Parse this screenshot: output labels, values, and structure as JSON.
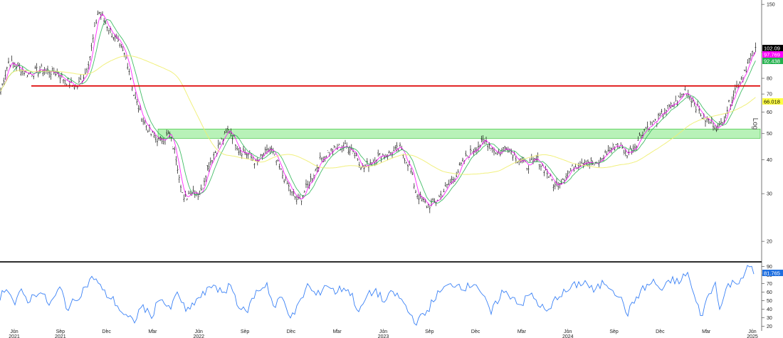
{
  "chart_data": [
    {
      "type": "line",
      "panel": "price",
      "title": "",
      "scale": "log",
      "axis_label": "Log",
      "ylim": [
        17,
        152
      ],
      "y_ticks": [
        20,
        30,
        40,
        50,
        60,
        70,
        80,
        100,
        150
      ],
      "x_tick_labels": [
        {
          "label": "Jun",
          "year": "2021"
        },
        {
          "label": "Sep",
          "year": "2021"
        },
        {
          "label": "Dec",
          "year": ""
        },
        {
          "label": "Mar",
          "year": ""
        },
        {
          "label": "Jun",
          "year": "2022"
        },
        {
          "label": "Sep",
          "year": ""
        },
        {
          "label": "Dec",
          "year": ""
        },
        {
          "label": "Mar",
          "year": ""
        },
        {
          "label": "Jun",
          "year": "2023"
        },
        {
          "label": "Sep",
          "year": ""
        },
        {
          "label": "Dec",
          "year": ""
        },
        {
          "label": "Mar",
          "year": ""
        },
        {
          "label": "Jun",
          "year": "2024"
        },
        {
          "label": "Sep",
          "year": ""
        },
        {
          "label": "Dec",
          "year": ""
        },
        {
          "label": "Mar",
          "year": ""
        },
        {
          "label": "Jun",
          "year": "2025"
        }
      ],
      "price_path": [
        [
          0,
          70
        ],
        [
          12,
          92
        ],
        [
          25,
          88
        ],
        [
          40,
          83
        ],
        [
          58,
          86
        ],
        [
          78,
          84
        ],
        [
          100,
          76
        ],
        [
          108,
          74
        ],
        [
          120,
          84
        ],
        [
          128,
          100
        ],
        [
          138,
          142
        ],
        [
          150,
          126
        ],
        [
          165,
          108
        ],
        [
          178,
          94
        ],
        [
          188,
          70
        ],
        [
          198,
          58
        ],
        [
          212,
          50
        ],
        [
          225,
          47
        ],
        [
          238,
          50
        ],
        [
          248,
          40
        ],
        [
          258,
          28
        ],
        [
          268,
          31
        ],
        [
          282,
          30
        ],
        [
          292,
          38
        ],
        [
          305,
          44
        ],
        [
          322,
          52
        ],
        [
          335,
          44
        ],
        [
          348,
          42
        ],
        [
          360,
          39
        ],
        [
          380,
          44
        ],
        [
          395,
          36
        ],
        [
          410,
          30
        ],
        [
          420,
          28
        ],
        [
          435,
          33
        ],
        [
          450,
          40
        ],
        [
          465,
          43
        ],
        [
          480,
          45
        ],
        [
          495,
          44
        ],
        [
          510,
          37
        ],
        [
          528,
          41
        ],
        [
          545,
          42
        ],
        [
          562,
          44
        ],
        [
          575,
          38
        ],
        [
          585,
          30
        ],
        [
          600,
          27
        ],
        [
          612,
          28
        ],
        [
          625,
          31
        ],
        [
          640,
          35
        ],
        [
          655,
          41
        ],
        [
          670,
          45
        ],
        [
          682,
          47
        ],
        [
          700,
          42
        ],
        [
          712,
          45
        ],
        [
          725,
          41
        ],
        [
          740,
          38
        ],
        [
          755,
          40
        ],
        [
          768,
          36
        ],
        [
          780,
          32
        ],
        [
          795,
          35
        ],
        [
          808,
          38
        ],
        [
          822,
          40
        ],
        [
          838,
          38
        ],
        [
          850,
          42
        ],
        [
          868,
          46
        ],
        [
          880,
          42
        ],
        [
          892,
          45
        ],
        [
          905,
          52
        ],
        [
          920,
          55
        ],
        [
          935,
          61
        ],
        [
          950,
          65
        ],
        [
          963,
          72
        ],
        [
          975,
          65
        ],
        [
          988,
          57
        ],
        [
          1000,
          55
        ],
        [
          1010,
          52
        ],
        [
          1020,
          60
        ],
        [
          1032,
          72
        ],
        [
          1045,
          84
        ],
        [
          1055,
          96
        ],
        [
          1062,
          102
        ]
      ],
      "indicator_lines": [
        {
          "color": "#ff00ff",
          "label": "97.769",
          "label_bg": "#ff00ff",
          "smooth": 4
        },
        {
          "color": "#22b14c",
          "label": "92.438",
          "label_bg": "#22b14c",
          "smooth": 9
        },
        {
          "color": "#f0ee70",
          "label": "66.018",
          "label_bg": "#ffff44",
          "smooth": 55
        }
      ],
      "last_price_label": "102.09",
      "last_price": 102.09,
      "horizontal_line": {
        "value": 75,
        "color": "#dd0000"
      },
      "support_band": {
        "from": 48,
        "to": 52,
        "color": "#7de87d"
      }
    },
    {
      "type": "line",
      "panel": "oscillator",
      "ylim": [
        17,
        92
      ],
      "y_ticks": [
        20,
        30,
        40,
        50,
        60,
        70,
        80,
        90
      ],
      "series_color": "#3b82f6",
      "last_value_label": "81.765",
      "values_path": [
        [
          0,
          55
        ],
        [
          10,
          68
        ],
        [
          20,
          45
        ],
        [
          30,
          60
        ],
        [
          40,
          50
        ],
        [
          55,
          62
        ],
        [
          70,
          45
        ],
        [
          85,
          65
        ],
        [
          95,
          40
        ],
        [
          110,
          55
        ],
        [
          125,
          72
        ],
        [
          133,
          78
        ],
        [
          145,
          60
        ],
        [
          160,
          50
        ],
        [
          175,
          32
        ],
        [
          188,
          25
        ],
        [
          200,
          45
        ],
        [
          212,
          30
        ],
        [
          225,
          55
        ],
        [
          238,
          38
        ],
        [
          250,
          60
        ],
        [
          262,
          35
        ],
        [
          275,
          50
        ],
        [
          290,
          60
        ],
        [
          300,
          70
        ],
        [
          315,
          55
        ],
        [
          322,
          72
        ],
        [
          335,
          45
        ],
        [
          345,
          35
        ],
        [
          360,
          60
        ],
        [
          375,
          70
        ],
        [
          385,
          40
        ],
        [
          395,
          55
        ],
        [
          410,
          30
        ],
        [
          420,
          45
        ],
        [
          432,
          68
        ],
        [
          445,
          55
        ],
        [
          458,
          70
        ],
        [
          470,
          60
        ],
        [
          485,
          66
        ],
        [
          495,
          55
        ],
        [
          505,
          35
        ],
        [
          515,
          55
        ],
        [
          528,
          62
        ],
        [
          540,
          48
        ],
        [
          552,
          60
        ],
        [
          565,
          50
        ],
        [
          575,
          35
        ],
        [
          585,
          25
        ],
        [
          598,
          35
        ],
        [
          612,
          55
        ],
        [
          625,
          65
        ],
        [
          640,
          70
        ],
        [
          655,
          65
        ],
        [
          668,
          72
        ],
        [
          680,
          52
        ],
        [
          690,
          35
        ],
        [
          705,
          60
        ],
        [
          720,
          55
        ],
        [
          732,
          45
        ],
        [
          745,
          58
        ],
        [
          758,
          45
        ],
        [
          770,
          35
        ],
        [
          782,
          55
        ],
        [
          795,
          60
        ],
        [
          808,
          68
        ],
        [
          822,
          72
        ],
        [
          835,
          60
        ],
        [
          848,
          72
        ],
        [
          860,
          65
        ],
        [
          870,
          55
        ],
        [
          882,
          35
        ],
        [
          895,
          55
        ],
        [
          905,
          65
        ],
        [
          918,
          72
        ],
        [
          930,
          62
        ],
        [
          945,
          75
        ],
        [
          955,
          70
        ],
        [
          965,
          85
        ],
        [
          975,
          55
        ],
        [
          985,
          32
        ],
        [
          995,
          55
        ],
        [
          1005,
          70
        ],
        [
          1012,
          40
        ],
        [
          1022,
          68
        ],
        [
          1035,
          72
        ],
        [
          1045,
          80
        ],
        [
          1052,
          90
        ],
        [
          1060,
          82
        ]
      ]
    }
  ]
}
